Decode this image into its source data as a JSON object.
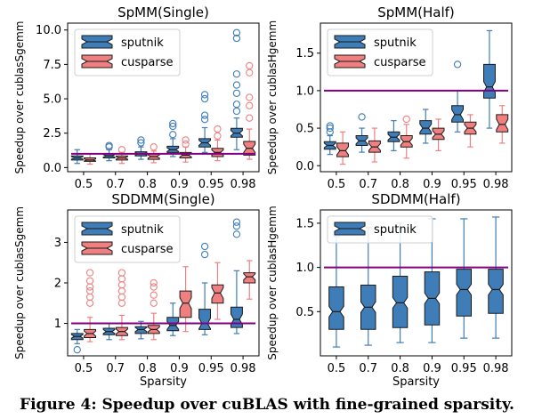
{
  "caption": "Figure 4: Speedup over cuBLAS with fine-grained sparsity.",
  "colors": {
    "sputnik": "#3f7db8",
    "cusparse": "#f08080",
    "baseline": "#800080"
  },
  "chart_data": [
    {
      "type": "box",
      "title": "SpMM(Single)",
      "xlabel": "",
      "ylabel": "Speedup over cublasSgemm",
      "categories": [
        "0.5",
        "0.7",
        "0.8",
        "0.9",
        "0.95",
        "0.98"
      ],
      "ylim": [
        -0.3,
        10.5
      ],
      "yticks": [
        0.0,
        2.5,
        5.0,
        7.5,
        10.0
      ],
      "yticklabels": [
        "0.0",
        "2.5",
        "5.0",
        "7.5",
        "10.0"
      ],
      "baseline": 1.0,
      "legend": "top-left",
      "series": [
        {
          "name": "sputnik",
          "boxes": [
            {
              "whislo": 0.3,
              "q1": 0.55,
              "med": 0.7,
              "q3": 0.85,
              "whishi": 1.3,
              "fliers": []
            },
            {
              "whislo": 0.5,
              "q1": 0.7,
              "med": 0.85,
              "q3": 1.0,
              "whishi": 1.3,
              "fliers": [
                1.5,
                1.6
              ]
            },
            {
              "whislo": 0.6,
              "q1": 0.85,
              "med": 1.0,
              "q3": 1.15,
              "whishi": 1.5,
              "fliers": [
                1.8,
                2.0
              ]
            },
            {
              "whislo": 0.8,
              "q1": 1.1,
              "med": 1.3,
              "q3": 1.55,
              "whishi": 2.1,
              "fliers": [
                2.4,
                3.0,
                3.2
              ]
            },
            {
              "whislo": 1.1,
              "q1": 1.5,
              "med": 1.8,
              "q3": 2.1,
              "whishi": 2.9,
              "fliers": [
                3.5,
                3.8,
                5.0,
                5.3
              ]
            },
            {
              "whislo": 1.3,
              "q1": 2.2,
              "med": 2.5,
              "q3": 2.85,
              "whishi": 3.6,
              "fliers": [
                4.1,
                4.6,
                5.4,
                6.0,
                6.8,
                9.4,
                9.8
              ]
            }
          ]
        },
        {
          "name": "cusparse",
          "boxes": [
            {
              "whislo": 0.25,
              "q1": 0.45,
              "med": 0.55,
              "q3": 0.7,
              "whishi": 1.0,
              "fliers": []
            },
            {
              "whislo": 0.3,
              "q1": 0.55,
              "med": 0.7,
              "q3": 0.85,
              "whishi": 1.1,
              "fliers": [
                1.3
              ]
            },
            {
              "whislo": 0.35,
              "q1": 0.6,
              "med": 0.8,
              "q3": 1.0,
              "whishi": 1.2,
              "fliers": [
                1.5
              ]
            },
            {
              "whislo": 0.4,
              "q1": 0.7,
              "med": 0.9,
              "q3": 1.1,
              "whishi": 1.5,
              "fliers": [
                1.7,
                2.0
              ]
            },
            {
              "whislo": 0.5,
              "q1": 0.8,
              "med": 1.1,
              "q3": 1.4,
              "whishi": 2.0,
              "fliers": [
                2.3,
                2.8
              ]
            },
            {
              "whislo": 0.6,
              "q1": 0.9,
              "med": 1.4,
              "q3": 1.9,
              "whishi": 2.8,
              "fliers": [
                3.6,
                4.5,
                5.1,
                6.9,
                7.4
              ]
            }
          ]
        }
      ]
    },
    {
      "type": "box",
      "title": "SpMM(Half)",
      "xlabel": "",
      "ylabel": "Speedup over cublasHgemm",
      "categories": [
        "0.5",
        "0.7",
        "0.8",
        "0.9",
        "0.95",
        "0.98"
      ],
      "ylim": [
        -0.08,
        1.9
      ],
      "yticks": [
        0.0,
        0.5,
        1.0,
        1.5
      ],
      "yticklabels": [
        "0.0",
        "0.5",
        "1.0",
        "1.5"
      ],
      "baseline": 1.0,
      "legend": "top-left",
      "series": [
        {
          "name": "sputnik",
          "boxes": [
            {
              "whislo": 0.15,
              "q1": 0.22,
              "med": 0.27,
              "q3": 0.32,
              "whishi": 0.4,
              "fliers": [
                0.45,
                0.5,
                0.53
              ]
            },
            {
              "whislo": 0.18,
              "q1": 0.27,
              "med": 0.33,
              "q3": 0.4,
              "whishi": 0.5,
              "fliers": [
                0.65
              ]
            },
            {
              "whislo": 0.2,
              "q1": 0.32,
              "med": 0.38,
              "q3": 0.45,
              "whishi": 0.6,
              "fliers": []
            },
            {
              "whislo": 0.3,
              "q1": 0.42,
              "med": 0.5,
              "q3": 0.6,
              "whishi": 0.75,
              "fliers": []
            },
            {
              "whislo": 0.45,
              "q1": 0.58,
              "med": 0.68,
              "q3": 0.8,
              "whishi": 1.0,
              "fliers": [
                1.35
              ]
            },
            {
              "whislo": 0.5,
              "q1": 0.9,
              "med": 1.05,
              "q3": 1.35,
              "whishi": 1.8,
              "fliers": []
            }
          ]
        },
        {
          "name": "cusparse",
          "boxes": [
            {
              "whislo": 0.02,
              "q1": 0.12,
              "med": 0.2,
              "q3": 0.3,
              "whishi": 0.45,
              "fliers": []
            },
            {
              "whislo": 0.05,
              "q1": 0.18,
              "med": 0.25,
              "q3": 0.33,
              "whishi": 0.5,
              "fliers": []
            },
            {
              "whislo": 0.1,
              "q1": 0.25,
              "med": 0.32,
              "q3": 0.4,
              "whishi": 0.55,
              "fliers": [
                0.62
              ]
            },
            {
              "whislo": 0.2,
              "q1": 0.35,
              "med": 0.42,
              "q3": 0.5,
              "whishi": 0.62,
              "fliers": []
            },
            {
              "whislo": 0.25,
              "q1": 0.42,
              "med": 0.5,
              "q3": 0.58,
              "whishi": 0.68,
              "fliers": []
            },
            {
              "whislo": 0.3,
              "q1": 0.45,
              "med": 0.55,
              "q3": 0.68,
              "whishi": 0.8,
              "fliers": []
            }
          ]
        }
      ]
    },
    {
      "type": "box",
      "title": "SDDMM(Single)",
      "xlabel": "Sparsity",
      "ylabel": "Speedup over cublasSgemm",
      "categories": [
        "0.5",
        "0.7",
        "0.8",
        "0.9",
        "0.95",
        "0.98"
      ],
      "ylim": [
        0.2,
        3.8
      ],
      "yticks": [
        1,
        2,
        3
      ],
      "yticklabels": [
        "1",
        "2",
        "3"
      ],
      "baseline": 1.0,
      "legend": "top-left",
      "series": [
        {
          "name": "sputnik",
          "boxes": [
            {
              "whislo": 0.5,
              "q1": 0.6,
              "med": 0.68,
              "q3": 0.75,
              "whishi": 0.85,
              "fliers": [
                0.35
              ]
            },
            {
              "whislo": 0.6,
              "q1": 0.72,
              "med": 0.8,
              "q3": 0.88,
              "whishi": 1.0,
              "fliers": []
            },
            {
              "whislo": 0.62,
              "q1": 0.75,
              "med": 0.85,
              "q3": 0.92,
              "whishi": 1.05,
              "fliers": []
            },
            {
              "whislo": 0.7,
              "q1": 0.82,
              "med": 0.95,
              "q3": 1.15,
              "whishi": 1.5,
              "fliers": []
            },
            {
              "whislo": 0.72,
              "q1": 0.85,
              "med": 1.0,
              "q3": 1.35,
              "whishi": 2.0,
              "fliers": [
                2.7,
                2.9
              ]
            },
            {
              "whislo": 0.75,
              "q1": 0.9,
              "med": 1.1,
              "q3": 1.4,
              "whishi": 2.3,
              "fliers": [
                3.2,
                3.4,
                3.5
              ]
            }
          ]
        },
        {
          "name": "cusparse",
          "boxes": [
            {
              "whislo": 0.55,
              "q1": 0.65,
              "med": 0.75,
              "q3": 0.85,
              "whishi": 1.15,
              "fliers": [
                1.5,
                1.65,
                1.8,
                1.9,
                2.05,
                2.25
              ]
            },
            {
              "whislo": 0.6,
              "q1": 0.7,
              "med": 0.8,
              "q3": 0.9,
              "whishi": 1.2,
              "fliers": [
                1.5,
                1.65,
                1.8,
                1.95,
                2.1,
                2.25
              ]
            },
            {
              "whislo": 0.6,
              "q1": 0.75,
              "med": 0.85,
              "q3": 0.95,
              "whishi": 1.25,
              "fliers": [
                1.5,
                1.7,
                1.9,
                2.0
              ]
            },
            {
              "whislo": 0.8,
              "q1": 1.15,
              "med": 1.5,
              "q3": 1.8,
              "whishi": 2.4,
              "fliers": []
            },
            {
              "whislo": 1.1,
              "q1": 1.5,
              "med": 1.75,
              "q3": 1.95,
              "whishi": 2.5,
              "fliers": []
            },
            {
              "whislo": 1.6,
              "q1": 2.0,
              "med": 2.15,
              "q3": 2.25,
              "whishi": 2.55,
              "fliers": []
            }
          ]
        }
      ],
      "extra_series_boxes_note": ""
    },
    {
      "type": "box",
      "title": "SDDMM(Half)",
      "xlabel": "Sparsity",
      "ylabel": "Speedup over cublasHgemm",
      "categories": [
        "0.5",
        "0.7",
        "0.8",
        "0.9",
        "0.95",
        "0.98"
      ],
      "ylim": [
        0.0,
        1.65
      ],
      "yticks": [
        0.5,
        1.0,
        1.5
      ],
      "yticklabels": [
        "0.5",
        "1.0",
        "1.5"
      ],
      "baseline": 1.0,
      "legend": "top-left",
      "series": [
        {
          "name": "sputnik",
          "boxes": [
            {
              "whislo": 0.1,
              "q1": 0.3,
              "med": 0.5,
              "q3": 0.78,
              "whishi": 1.35,
              "fliers": []
            },
            {
              "whislo": 0.12,
              "q1": 0.3,
              "med": 0.55,
              "q3": 0.8,
              "whishi": 1.45,
              "fliers": []
            },
            {
              "whislo": 0.15,
              "q1": 0.32,
              "med": 0.6,
              "q3": 0.9,
              "whishi": 1.5,
              "fliers": []
            },
            {
              "whislo": 0.15,
              "q1": 0.35,
              "med": 0.65,
              "q3": 0.95,
              "whishi": 1.55,
              "fliers": []
            },
            {
              "whislo": 0.2,
              "q1": 0.45,
              "med": 0.75,
              "q3": 0.98,
              "whishi": 1.55,
              "fliers": []
            },
            {
              "whislo": 0.2,
              "q1": 0.48,
              "med": 0.75,
              "q3": 0.98,
              "whishi": 1.57,
              "fliers": []
            }
          ]
        }
      ]
    }
  ]
}
